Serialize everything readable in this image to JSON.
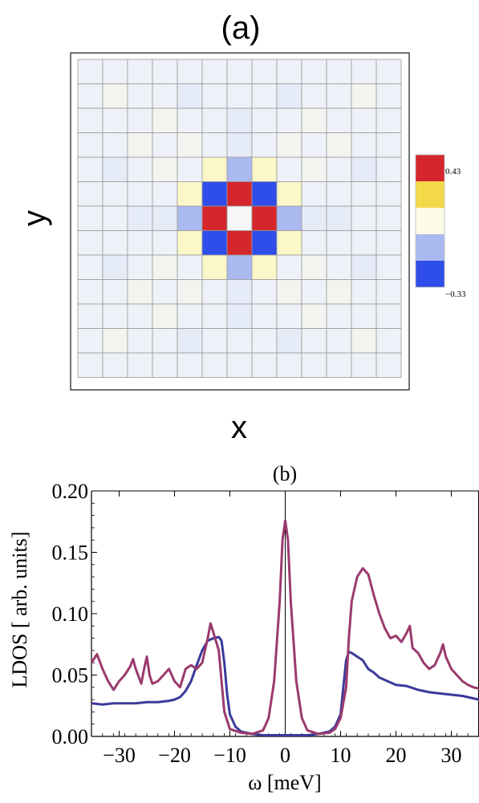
{
  "chart_data": [
    {
      "panel_label": "(a)",
      "type": "heatmap",
      "xlabel": "x",
      "ylabel": "y",
      "grid": true,
      "colorbar": {
        "placement": "right",
        "tick_labels": [
          "0.43",
          "−0.33"
        ],
        "colors": [
          "#d4262c",
          "#f3d94a",
          "#fbfbe8",
          "#aab9f0",
          "#2f4de8"
        ],
        "range": [
          -0.33,
          0.43
        ]
      },
      "rows": 13,
      "cols": 13,
      "values": [
        [
          -0.01,
          -0.01,
          -0.01,
          -0.01,
          -0.01,
          -0.01,
          -0.01,
          -0.01,
          -0.01,
          -0.01,
          -0.01,
          -0.01,
          -0.01
        ],
        [
          -0.01,
          0.0,
          -0.01,
          -0.01,
          -0.02,
          -0.01,
          -0.01,
          -0.01,
          -0.02,
          -0.01,
          -0.01,
          0.0,
          -0.01
        ],
        [
          -0.01,
          -0.01,
          -0.01,
          0.0,
          -0.01,
          -0.01,
          -0.02,
          -0.01,
          -0.01,
          0.0,
          -0.01,
          -0.01,
          -0.01
        ],
        [
          -0.01,
          -0.01,
          0.0,
          -0.01,
          0.0,
          -0.01,
          -0.02,
          -0.01,
          0.0,
          -0.01,
          0.0,
          -0.01,
          -0.01
        ],
        [
          -0.01,
          -0.02,
          -0.01,
          0.0,
          -0.01,
          0.05,
          -0.15,
          0.05,
          -0.01,
          0.0,
          -0.01,
          -0.02,
          -0.01
        ],
        [
          -0.01,
          -0.01,
          -0.01,
          -0.01,
          0.05,
          -0.33,
          0.43,
          -0.33,
          0.05,
          -0.01,
          -0.01,
          -0.01,
          -0.01
        ],
        [
          -0.01,
          -0.01,
          -0.02,
          -0.02,
          -0.15,
          0.43,
          0.02,
          0.43,
          -0.15,
          -0.02,
          -0.02,
          -0.01,
          -0.01
        ],
        [
          -0.01,
          -0.01,
          -0.01,
          -0.01,
          0.05,
          -0.33,
          0.43,
          -0.33,
          0.05,
          -0.01,
          -0.01,
          -0.01,
          -0.01
        ],
        [
          -0.01,
          -0.02,
          -0.01,
          0.0,
          -0.01,
          0.05,
          -0.15,
          0.05,
          -0.01,
          0.0,
          -0.01,
          -0.02,
          -0.01
        ],
        [
          -0.01,
          -0.01,
          0.0,
          -0.01,
          0.0,
          -0.01,
          -0.02,
          -0.01,
          0.0,
          -0.01,
          0.0,
          -0.01,
          -0.01
        ],
        [
          -0.01,
          -0.01,
          -0.01,
          0.0,
          -0.01,
          -0.01,
          -0.02,
          -0.01,
          -0.01,
          0.0,
          -0.01,
          -0.01,
          -0.01
        ],
        [
          -0.01,
          0.0,
          -0.01,
          -0.01,
          -0.02,
          -0.01,
          -0.01,
          -0.01,
          -0.02,
          -0.01,
          -0.01,
          0.0,
          -0.01
        ],
        [
          -0.01,
          -0.01,
          -0.01,
          -0.01,
          -0.01,
          -0.01,
          -0.01,
          -0.01,
          -0.01,
          -0.01,
          -0.01,
          -0.01,
          -0.01
        ]
      ]
    },
    {
      "panel_label": "(b)",
      "type": "line",
      "xlabel": "ω [meV]",
      "ylabel": "LDOS [ arb. units]",
      "xlim": [
        -35,
        35
      ],
      "ylim": [
        0,
        0.2
      ],
      "xticks": [
        -30,
        -20,
        -10,
        0,
        10,
        20,
        30
      ],
      "xtick_labels": [
        "−30",
        "−20",
        "−10",
        "0",
        "10",
        "20",
        "30"
      ],
      "yticks": [
        0,
        0.05,
        0.1,
        0.15,
        0.2
      ],
      "ytick_labels": [
        "0.00",
        "0.05",
        "0.10",
        "0.15",
        "0.20"
      ],
      "vertical_line_x": 0,
      "series": [
        {
          "color": "#3b3a9a",
          "points": [
            [
              -35,
              0.027
            ],
            [
              -33,
              0.026
            ],
            [
              -31,
              0.027
            ],
            [
              -29,
              0.027
            ],
            [
              -27,
              0.027
            ],
            [
              -25,
              0.028
            ],
            [
              -23,
              0.028
            ],
            [
              -21,
              0.029
            ],
            [
              -20,
              0.03
            ],
            [
              -19,
              0.032
            ],
            [
              -18,
              0.037
            ],
            [
              -17,
              0.045
            ],
            [
              -16,
              0.058
            ],
            [
              -15,
              0.07
            ],
            [
              -14,
              0.078
            ],
            [
              -13,
              0.08
            ],
            [
              -12,
              0.081
            ],
            [
              -11.5,
              0.078
            ],
            [
              -11,
              0.06
            ],
            [
              -10.5,
              0.035
            ],
            [
              -10,
              0.018
            ],
            [
              -9,
              0.008
            ],
            [
              -8,
              0.004
            ],
            [
              -6,
              0.002
            ],
            [
              -4,
              0.001
            ],
            [
              -2,
              0.001
            ],
            [
              0,
              0.001
            ],
            [
              2,
              0.001
            ],
            [
              4,
              0.001
            ],
            [
              6,
              0.002
            ],
            [
              8,
              0.004
            ],
            [
              9,
              0.008
            ],
            [
              10,
              0.018
            ],
            [
              10.5,
              0.04
            ],
            [
              11,
              0.062
            ],
            [
              11.5,
              0.069
            ],
            [
              12,
              0.068
            ],
            [
              13,
              0.065
            ],
            [
              14,
              0.062
            ],
            [
              15,
              0.055
            ],
            [
              16,
              0.052
            ],
            [
              17,
              0.048
            ],
            [
              18,
              0.046
            ],
            [
              19,
              0.044
            ],
            [
              20,
              0.042
            ],
            [
              22,
              0.041
            ],
            [
              24,
              0.038
            ],
            [
              26,
              0.036
            ],
            [
              28,
              0.035
            ],
            [
              30,
              0.034
            ],
            [
              32,
              0.033
            ],
            [
              34,
              0.031
            ],
            [
              35,
              0.03
            ]
          ]
        },
        {
          "color": "#9b3a6e",
          "points": [
            [
              -35,
              0.06
            ],
            [
              -34,
              0.067
            ],
            [
              -33,
              0.055
            ],
            [
              -32,
              0.045
            ],
            [
              -31,
              0.038
            ],
            [
              -30,
              0.045
            ],
            [
              -29,
              0.05
            ],
            [
              -28,
              0.057
            ],
            [
              -27.5,
              0.063
            ],
            [
              -27,
              0.055
            ],
            [
              -26,
              0.043
            ],
            [
              -25.5,
              0.055
            ],
            [
              -25,
              0.065
            ],
            [
              -24.5,
              0.05
            ],
            [
              -24,
              0.043
            ],
            [
              -23,
              0.045
            ],
            [
              -22,
              0.05
            ],
            [
              -21,
              0.055
            ],
            [
              -20,
              0.045
            ],
            [
              -19,
              0.04
            ],
            [
              -18,
              0.055
            ],
            [
              -17,
              0.058
            ],
            [
              -16,
              0.055
            ],
            [
              -15,
              0.06
            ],
            [
              -14,
              0.08
            ],
            [
              -13.5,
              0.092
            ],
            [
              -13,
              0.085
            ],
            [
              -12,
              0.07
            ],
            [
              -11.5,
              0.045
            ],
            [
              -11,
              0.02
            ],
            [
              -10,
              0.006
            ],
            [
              -8,
              0.003
            ],
            [
              -6,
              0.002
            ],
            [
              -4,
              0.005
            ],
            [
              -3,
              0.015
            ],
            [
              -2,
              0.045
            ],
            [
              -1,
              0.11
            ],
            [
              -0.5,
              0.16
            ],
            [
              0,
              0.176
            ],
            [
              0.5,
              0.16
            ],
            [
              1,
              0.11
            ],
            [
              2,
              0.045
            ],
            [
              3,
              0.015
            ],
            [
              4,
              0.005
            ],
            [
              6,
              0.002
            ],
            [
              8,
              0.003
            ],
            [
              9,
              0.006
            ],
            [
              10,
              0.015
            ],
            [
              11,
              0.04
            ],
            [
              11.5,
              0.08
            ],
            [
              12,
              0.11
            ],
            [
              13,
              0.13
            ],
            [
              14,
              0.137
            ],
            [
              15,
              0.132
            ],
            [
              16,
              0.115
            ],
            [
              17,
              0.1
            ],
            [
              18,
              0.088
            ],
            [
              19,
              0.08
            ],
            [
              20,
              0.082
            ],
            [
              21,
              0.077
            ],
            [
              22,
              0.085
            ],
            [
              22.5,
              0.09
            ],
            [
              23,
              0.072
            ],
            [
              24,
              0.068
            ],
            [
              25,
              0.06
            ],
            [
              26,
              0.055
            ],
            [
              27,
              0.058
            ],
            [
              28,
              0.068
            ],
            [
              28.5,
              0.075
            ],
            [
              29,
              0.065
            ],
            [
              30,
              0.055
            ],
            [
              31,
              0.05
            ],
            [
              32,
              0.045
            ],
            [
              33,
              0.042
            ],
            [
              34,
              0.04
            ],
            [
              35,
              0.039
            ]
          ]
        }
      ]
    }
  ]
}
